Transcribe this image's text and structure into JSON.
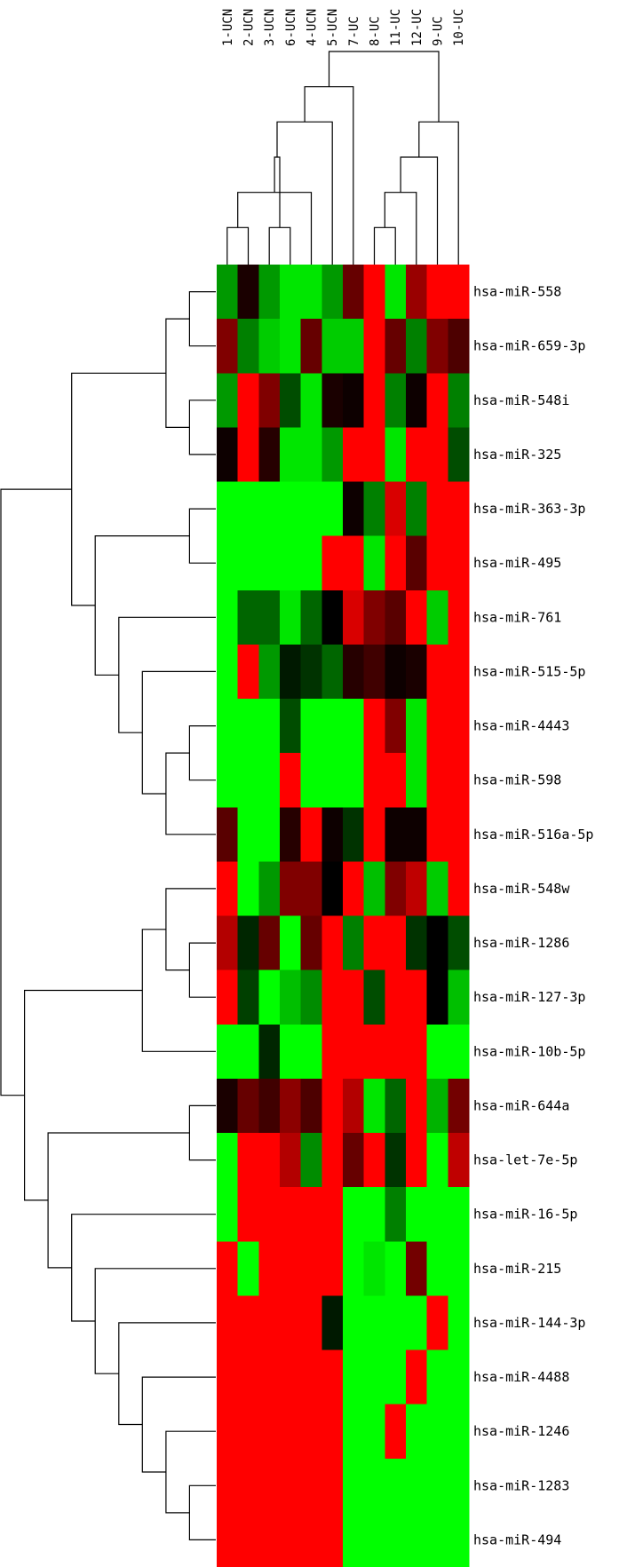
{
  "chart_data": {
    "type": "heatmap",
    "title": "",
    "samples": [
      "1-UCN",
      "2-UCN",
      "3-UCN",
      "6-UCN",
      "4-UCN",
      "5-UCN",
      "7-UC",
      "8-UC",
      "11-UC",
      "12-UC",
      "9-UC",
      "10-UC"
    ],
    "genes": [
      "hsa-miR-558",
      "hsa-miR-659-3p",
      "hsa-miR-548i",
      "hsa-miR-325",
      "hsa-miR-363-3p",
      "hsa-miR-495",
      "hsa-miR-761",
      "hsa-miR-515-5p",
      "hsa-miR-4443",
      "hsa-miR-598",
      "hsa-miR-516a-5p",
      "hsa-miR-548w",
      "hsa-miR-1286",
      "hsa-miR-127-3p",
      "hsa-miR-10b-5p",
      "hsa-miR-644a",
      "hsa-let-7e-5p",
      "hsa-miR-16-5p",
      "hsa-miR-215",
      "hsa-miR-144-3p",
      "hsa-miR-4488",
      "hsa-miR-1246",
      "hsa-miR-1283",
      "hsa-miR-494"
    ],
    "value_range": [
      -1,
      1
    ],
    "color_scale": {
      "low": "#00ff00",
      "mid": "#000000",
      "high": "#ff0000"
    },
    "values": [
      [
        -0.6,
        0.1,
        -0.6,
        -0.9,
        -0.9,
        -0.6,
        0.4,
        1,
        -0.9,
        0.6,
        1,
        1
      ],
      [
        0.5,
        -0.5,
        -0.8,
        -0.9,
        0.4,
        -0.8,
        -0.8,
        1,
        0.4,
        -0.5,
        0.5,
        0.3
      ],
      [
        -0.6,
        1,
        0.5,
        -0.3,
        -0.9,
        0.1,
        0.05,
        1,
        -0.5,
        0.05,
        1,
        -0.5
      ],
      [
        0.05,
        1,
        0.15,
        -0.9,
        -0.9,
        -0.6,
        1,
        1,
        -0.9,
        1,
        1,
        -0.3
      ],
      [
        -1,
        -1,
        -1,
        -1,
        -1,
        -1,
        0.05,
        -0.5,
        0.85,
        -0.5,
        1,
        1
      ],
      [
        -1,
        -1,
        -1,
        -1,
        -1,
        1,
        1,
        -0.9,
        1,
        0.35,
        1,
        1
      ],
      [
        -1,
        -0.4,
        -0.4,
        -0.9,
        -0.4,
        0,
        0.85,
        0.5,
        0.35,
        1,
        -0.8,
        1
      ],
      [
        -1,
        1,
        -0.6,
        -0.1,
        -0.2,
        -0.4,
        0.15,
        0.25,
        0.05,
        0.1,
        1,
        1
      ],
      [
        -1,
        -1,
        -1,
        -0.3,
        -1,
        -1,
        -1,
        1,
        0.5,
        -0.9,
        1,
        1
      ],
      [
        -1,
        -1,
        -1,
        1,
        -1,
        -1,
        -1,
        1,
        1,
        -0.9,
        1,
        1
      ],
      [
        0.35,
        -1,
        -1,
        0.15,
        1,
        0.05,
        -0.2,
        1,
        0.05,
        0.05,
        1,
        1
      ],
      [
        1,
        -1,
        -0.6,
        0.5,
        0.5,
        0,
        1,
        -0.75,
        0.5,
        0.75,
        -0.8,
        1
      ],
      [
        0.7,
        -0.15,
        0.4,
        -1,
        0.4,
        1,
        -0.5,
        1,
        1,
        -0.2,
        0,
        -0.3
      ],
      [
        1,
        -0.25,
        -1,
        -0.75,
        -0.55,
        1,
        1,
        -0.3,
        1,
        1,
        0,
        -0.75
      ],
      [
        -1,
        -1,
        -0.15,
        -1,
        -1,
        1,
        1,
        1,
        1,
        1,
        -1,
        -1
      ],
      [
        0.1,
        0.4,
        0.25,
        0.55,
        0.3,
        1,
        0.7,
        -0.9,
        -0.4,
        1,
        -0.7,
        0.45
      ],
      [
        -1,
        1,
        1,
        0.7,
        -0.55,
        1,
        0.4,
        1,
        -0.2,
        1,
        -1,
        0.75
      ],
      [
        -1,
        1,
        1,
        1,
        1,
        1,
        -1,
        -1,
        -0.5,
        -1,
        -1,
        -1
      ],
      [
        1,
        -1,
        1,
        1,
        1,
        1,
        -1,
        -0.9,
        -1,
        0.45,
        -1,
        -1
      ],
      [
        1,
        1,
        1,
        1,
        1,
        -0.1,
        -1,
        -1,
        -1,
        -1,
        1,
        -1
      ],
      [
        1,
        1,
        1,
        1,
        1,
        1,
        -1,
        -1,
        -1,
        1,
        -1,
        -1
      ],
      [
        1,
        1,
        1,
        1,
        1,
        1,
        -1,
        -1,
        1,
        -1,
        -1,
        -1
      ],
      [
        1,
        1,
        1,
        1,
        1,
        1,
        -1,
        -1,
        -1,
        -1,
        -1,
        -1
      ],
      [
        1,
        1,
        1,
        1,
        1,
        1,
        -1,
        -1,
        -1,
        -1,
        -1,
        -1
      ]
    ],
    "col_dendrogram": [
      [
        0,
        1
      ],
      [
        2,
        3
      ],
      [
        12,
        4
      ],
      [
        14,
        13
      ],
      [
        5,
        15
      ],
      [
        16,
        6
      ],
      [
        7,
        8
      ],
      [
        18,
        9
      ],
      [
        19,
        10
      ],
      [
        20,
        11
      ],
      [
        17,
        21
      ]
    ],
    "row_dendrogram": [
      [
        0,
        1
      ],
      [
        2,
        3
      ],
      [
        24,
        25
      ],
      [
        4,
        5
      ],
      [
        8,
        9
      ],
      [
        28,
        10
      ],
      [
        7,
        29
      ],
      [
        6,
        30
      ],
      [
        27,
        31
      ],
      [
        26,
        32
      ],
      [
        12,
        13
      ],
      [
        11,
        34
      ],
      [
        35,
        14
      ],
      [
        15,
        16
      ],
      [
        22,
        23
      ],
      [
        21,
        38
      ],
      [
        20,
        39
      ],
      [
        19,
        40
      ],
      [
        18,
        41
      ],
      [
        17,
        42
      ],
      [
        37,
        43
      ],
      [
        36,
        44
      ],
      [
        33,
        45
      ]
    ]
  }
}
